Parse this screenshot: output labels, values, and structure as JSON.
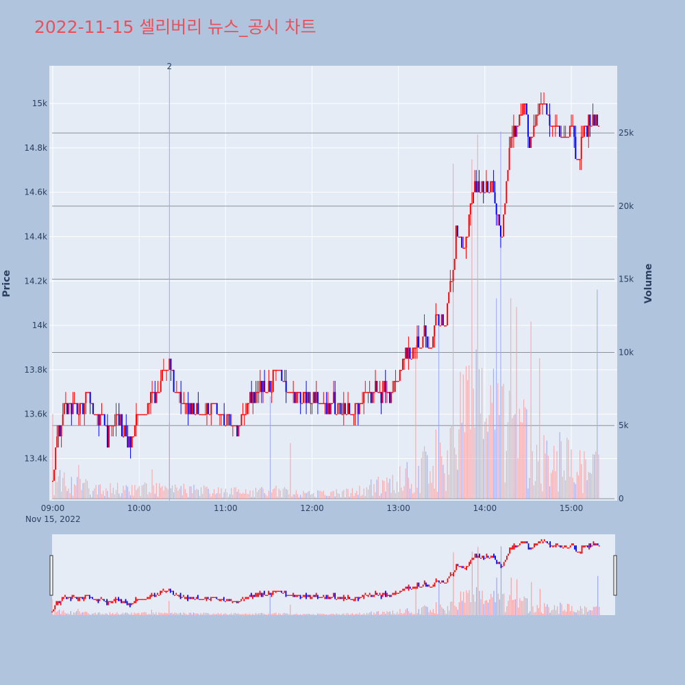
{
  "chart_data": {
    "type": "candlestick",
    "title": "2022-11-15 셀리버리 뉴스_공시 차트",
    "xlabel": "",
    "ylabel": "Price",
    "y2label": "Volume",
    "date_label": "Nov 15, 2022",
    "x_ticks": [
      "09:00",
      "10:00",
      "11:00",
      "12:00",
      "13:00",
      "14:00",
      "15:00"
    ],
    "y_ticks": [
      "13.4k",
      "13.6k",
      "13.8k",
      "14k",
      "14.2k",
      "14.4k",
      "14.6k",
      "14.8k",
      "15k"
    ],
    "y2_ticks": [
      "0",
      "5k",
      "10k",
      "15k",
      "20k",
      "25k"
    ],
    "ylim": [
      13210,
      15170
    ],
    "y2lim": [
      0,
      29500
    ],
    "grid": true,
    "colors": {
      "up": "#ff0000",
      "down": "#0000ff",
      "vol_up": "#f4a3a3",
      "vol_down": "#9aa6f2",
      "plot_bg": "#e5ecf6",
      "page_bg": "#b0c4de"
    },
    "annotations": [
      {
        "text": "2",
        "time": "10:21"
      }
    ],
    "price_path": [
      [
        "09:00",
        13300
      ],
      [
        "09:03",
        13450
      ],
      [
        "09:06",
        13600
      ],
      [
        "09:10",
        13650
      ],
      [
        "09:20",
        13620
      ],
      [
        "09:25",
        13700
      ],
      [
        "09:28",
        13580
      ],
      [
        "09:35",
        13600
      ],
      [
        "09:38",
        13500
      ],
      [
        "09:45",
        13600
      ],
      [
        "09:50",
        13500
      ],
      [
        "09:55",
        13450
      ],
      [
        "09:58",
        13600
      ],
      [
        "10:05",
        13650
      ],
      [
        "10:12",
        13700
      ],
      [
        "10:18",
        13800
      ],
      [
        "10:21",
        13850
      ],
      [
        "10:25",
        13720
      ],
      [
        "10:30",
        13650
      ],
      [
        "10:40",
        13600
      ],
      [
        "10:50",
        13650
      ],
      [
        "11:00",
        13600
      ],
      [
        "11:08",
        13550
      ],
      [
        "11:15",
        13650
      ],
      [
        "11:25",
        13700
      ],
      [
        "11:32",
        13750
      ],
      [
        "11:35",
        13800
      ],
      [
        "11:45",
        13700
      ],
      [
        "12:00",
        13650
      ],
      [
        "12:15",
        13650
      ],
      [
        "12:30",
        13600
      ],
      [
        "12:40",
        13700
      ],
      [
        "12:55",
        13700
      ],
      [
        "13:00",
        13750
      ],
      [
        "13:05",
        13850
      ],
      [
        "13:10",
        13900
      ],
      [
        "13:18",
        13950
      ],
      [
        "13:22",
        13850
      ],
      [
        "13:25",
        14050
      ],
      [
        "13:32",
        14000
      ],
      [
        "13:36",
        14200
      ],
      [
        "13:40",
        14400
      ],
      [
        "13:45",
        14350
      ],
      [
        "13:50",
        14500
      ],
      [
        "13:52",
        14650
      ],
      [
        "13:58",
        14600
      ],
      [
        "14:05",
        14650
      ],
      [
        "14:09",
        14500
      ],
      [
        "14:12",
        14400
      ],
      [
        "14:15",
        14650
      ],
      [
        "14:18",
        14850
      ],
      [
        "14:22",
        14900
      ],
      [
        "14:28",
        15000
      ],
      [
        "14:30",
        14800
      ],
      [
        "14:35",
        14900
      ],
      [
        "14:40",
        15000
      ],
      [
        "14:45",
        14900
      ],
      [
        "14:55",
        14850
      ],
      [
        "15:00",
        14900
      ],
      [
        "15:05",
        14700
      ],
      [
        "15:08",
        14850
      ],
      [
        "15:12",
        14900
      ],
      [
        "15:18",
        14950
      ]
    ],
    "volume_profile": [
      [
        "09:00",
        1500
      ],
      [
        "09:30",
        600
      ],
      [
        "10:00",
        700
      ],
      [
        "10:30",
        600
      ],
      [
        "11:00",
        450
      ],
      [
        "11:30",
        550
      ],
      [
        "12:00",
        350
      ],
      [
        "12:30",
        450
      ],
      [
        "13:00",
        1300
      ],
      [
        "13:20",
        2200
      ],
      [
        "13:35",
        3500
      ],
      [
        "13:45",
        6500
      ],
      [
        "14:00",
        5500
      ],
      [
        "14:20",
        4500
      ],
      [
        "14:40",
        3200
      ],
      [
        "15:00",
        2300
      ],
      [
        "15:20",
        1800
      ]
    ],
    "volume_spikes": [
      [
        "09:00",
        5800
      ],
      [
        "09:18",
        2300
      ],
      [
        "10:09",
        2000
      ],
      [
        "10:21",
        5200
      ],
      [
        "11:31",
        7000
      ],
      [
        "11:45",
        3800
      ],
      [
        "13:12",
        10500
      ],
      [
        "13:28",
        12200
      ],
      [
        "13:38",
        22900
      ],
      [
        "13:51",
        23200
      ],
      [
        "13:55",
        24900
      ],
      [
        "14:08",
        13700
      ],
      [
        "14:11",
        25100
      ],
      [
        "14:18",
        13700
      ],
      [
        "14:22",
        13100
      ],
      [
        "14:32",
        12100
      ],
      [
        "14:38",
        9600
      ],
      [
        "15:18",
        14300
      ]
    ],
    "range_slider": true
  }
}
